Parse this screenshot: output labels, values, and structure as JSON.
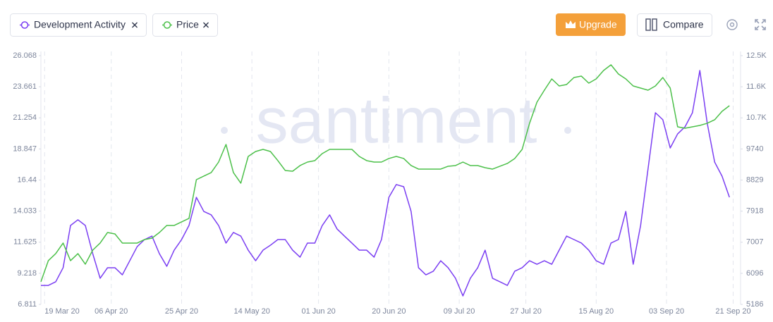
{
  "chart_data": {
    "type": "line",
    "x": [
      "2020-03-18",
      "2020-03-20",
      "2020-03-22",
      "2020-03-24",
      "2020-03-26",
      "2020-03-28",
      "2020-03-30",
      "2020-04-01",
      "2020-04-03",
      "2020-04-05",
      "2020-04-07",
      "2020-04-09",
      "2020-04-11",
      "2020-04-13",
      "2020-04-15",
      "2020-04-17",
      "2020-04-19",
      "2020-04-21",
      "2020-04-23",
      "2020-04-25",
      "2020-04-27",
      "2020-04-29",
      "2020-05-01",
      "2020-05-03",
      "2020-05-05",
      "2020-05-07",
      "2020-05-09",
      "2020-05-11",
      "2020-05-13",
      "2020-05-15",
      "2020-05-17",
      "2020-05-19",
      "2020-05-21",
      "2020-05-23",
      "2020-05-25",
      "2020-05-27",
      "2020-05-29",
      "2020-05-31",
      "2020-06-02",
      "2020-06-04",
      "2020-06-06",
      "2020-06-08",
      "2020-06-10",
      "2020-06-12",
      "2020-06-14",
      "2020-06-16",
      "2020-06-18",
      "2020-06-20",
      "2020-06-22",
      "2020-06-24",
      "2020-06-26",
      "2020-06-28",
      "2020-06-30",
      "2020-07-02",
      "2020-07-04",
      "2020-07-06",
      "2020-07-08",
      "2020-07-10",
      "2020-07-12",
      "2020-07-14",
      "2020-07-16",
      "2020-07-18",
      "2020-07-20",
      "2020-07-22",
      "2020-07-24",
      "2020-07-26",
      "2020-07-28",
      "2020-07-30",
      "2020-08-01",
      "2020-08-03",
      "2020-08-05",
      "2020-08-07",
      "2020-08-09",
      "2020-08-11",
      "2020-08-13",
      "2020-08-15",
      "2020-08-17",
      "2020-08-19",
      "2020-08-21",
      "2020-08-23",
      "2020-08-25",
      "2020-08-27",
      "2020-08-29",
      "2020-08-31",
      "2020-09-02",
      "2020-09-04",
      "2020-09-06",
      "2020-09-08",
      "2020-09-10",
      "2020-09-12",
      "2020-09-14",
      "2020-09-16",
      "2020-09-18",
      "2020-09-20"
    ],
    "series": [
      {
        "name": "Development Activity",
        "color": "#7b3ff2",
        "axis": "y",
        "values": [
          8.28,
          8.28,
          8.56,
          9.65,
          12.92,
          13.36,
          12.92,
          10.74,
          8.83,
          9.65,
          9.65,
          9.1,
          10.19,
          11.28,
          11.83,
          12.1,
          10.74,
          9.76,
          11.01,
          11.83,
          12.92,
          15.1,
          14.01,
          13.74,
          12.92,
          11.56,
          12.38,
          12.1,
          11.01,
          10.19,
          11.01,
          11.39,
          11.83,
          11.83,
          11.01,
          10.47,
          11.56,
          11.56,
          12.92,
          13.74,
          12.65,
          12.1,
          11.56,
          11.01,
          11.01,
          10.47,
          11.83,
          15.1,
          16.09,
          15.92,
          14.01,
          9.65,
          9.1,
          9.38,
          10.19,
          9.65,
          8.83,
          7.47,
          8.83,
          9.65,
          11.01,
          8.83,
          8.56,
          8.28,
          9.38,
          9.65,
          10.19,
          9.92,
          10.19,
          9.92,
          11.01,
          12.1,
          11.83,
          11.56,
          11.01,
          10.19,
          9.92,
          11.56,
          11.83,
          14.01,
          9.92,
          12.92,
          17.29,
          21.65,
          21.11,
          18.92,
          20.01,
          20.56,
          21.65,
          24.92,
          20.83,
          17.83,
          16.74,
          15.1
        ]
      },
      {
        "name": "Price",
        "color": "#4cc04a",
        "axis": "y2",
        "values": [
          5848,
          6467,
          6673,
          6983,
          6467,
          6673,
          6364,
          6776,
          6983,
          7292,
          7251,
          6983,
          6983,
          6983,
          7086,
          7127,
          7292,
          7499,
          7499,
          7602,
          7705,
          8840,
          8944,
          9047,
          9356,
          9872,
          9047,
          8737,
          9521,
          9666,
          9728,
          9666,
          9398,
          9109,
          9088,
          9253,
          9356,
          9398,
          9604,
          9728,
          9728,
          9728,
          9728,
          9521,
          9398,
          9356,
          9356,
          9460,
          9521,
          9460,
          9253,
          9150,
          9150,
          9150,
          9150,
          9233,
          9253,
          9356,
          9253,
          9253,
          9191,
          9150,
          9233,
          9315,
          9460,
          9728,
          10492,
          11111,
          11462,
          11792,
          11585,
          11627,
          11833,
          11874,
          11668,
          11792,
          12040,
          12205,
          11936,
          11792,
          11585,
          11524,
          11462,
          11585,
          11833,
          11524,
          10388,
          10347,
          10388,
          10430,
          10492,
          10595,
          10842,
          11008
        ]
      }
    ],
    "xlim": [
      "2020-03-18",
      "2020-09-23"
    ],
    "xticks": [
      {
        "value": "2020-03-19",
        "label": "19 Mar 20"
      },
      {
        "value": "2020-04-06",
        "label": "06 Apr 20"
      },
      {
        "value": "2020-04-25",
        "label": "25 Apr 20"
      },
      {
        "value": "2020-05-14",
        "label": "14 May 20"
      },
      {
        "value": "2020-06-01",
        "label": "01 Jun 20"
      },
      {
        "value": "2020-06-20",
        "label": "20 Jun 20"
      },
      {
        "value": "2020-07-09",
        "label": "09 Jul 20"
      },
      {
        "value": "2020-07-27",
        "label": "27 Jul 20"
      },
      {
        "value": "2020-08-15",
        "label": "15 Aug 20"
      },
      {
        "value": "2020-09-03",
        "label": "03 Sep 20"
      },
      {
        "value": "2020-09-21",
        "label": "21 Sep 20"
      }
    ],
    "ylim": [
      6.811,
      26.068
    ],
    "yticks": [
      6.811,
      9.218,
      11.625,
      14.033,
      16.44,
      18.847,
      21.254,
      23.661,
      26.068
    ],
    "y2lim": [
      5186,
      12473
    ],
    "y2ticks": [
      5186,
      6096,
      7007,
      7918,
      8829,
      9740,
      {
        "value": 10651,
        "label": "10.7K"
      },
      {
        "value": 11562,
        "label": "11.6K"
      },
      {
        "value": 12473,
        "label": "12.5K"
      }
    ],
    "grid": true,
    "watermark": "santiment"
  },
  "toolbar": {
    "upgrade": "Upgrade",
    "compare": "Compare"
  }
}
